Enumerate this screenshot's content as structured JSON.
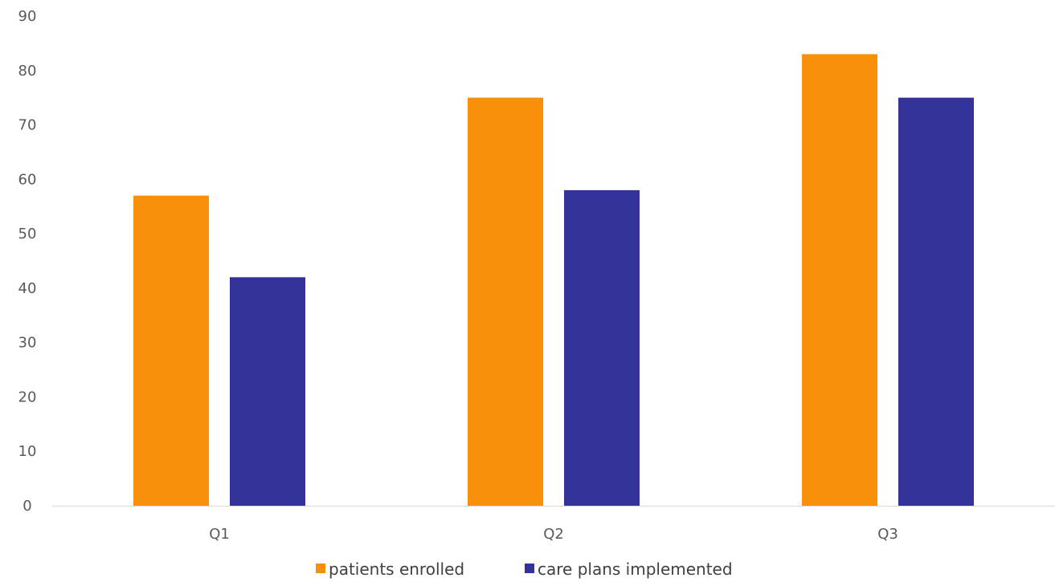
{
  "chart_data": {
    "type": "bar",
    "title": "",
    "xlabel": "",
    "ylabel": "",
    "categories": [
      "Q1",
      "Q2",
      "Q3"
    ],
    "series": [
      {
        "name": "patients enrolled",
        "color": "#F8900B",
        "values": [
          57,
          75,
          83
        ]
      },
      {
        "name": "care plans implemented",
        "color": "#333399",
        "values": [
          42,
          58,
          75
        ]
      }
    ],
    "ylim": [
      0,
      90
    ],
    "yticks": [
      0,
      10,
      20,
      30,
      40,
      50,
      60,
      70,
      80,
      90
    ],
    "grid": false,
    "legend_position": "bottom"
  }
}
